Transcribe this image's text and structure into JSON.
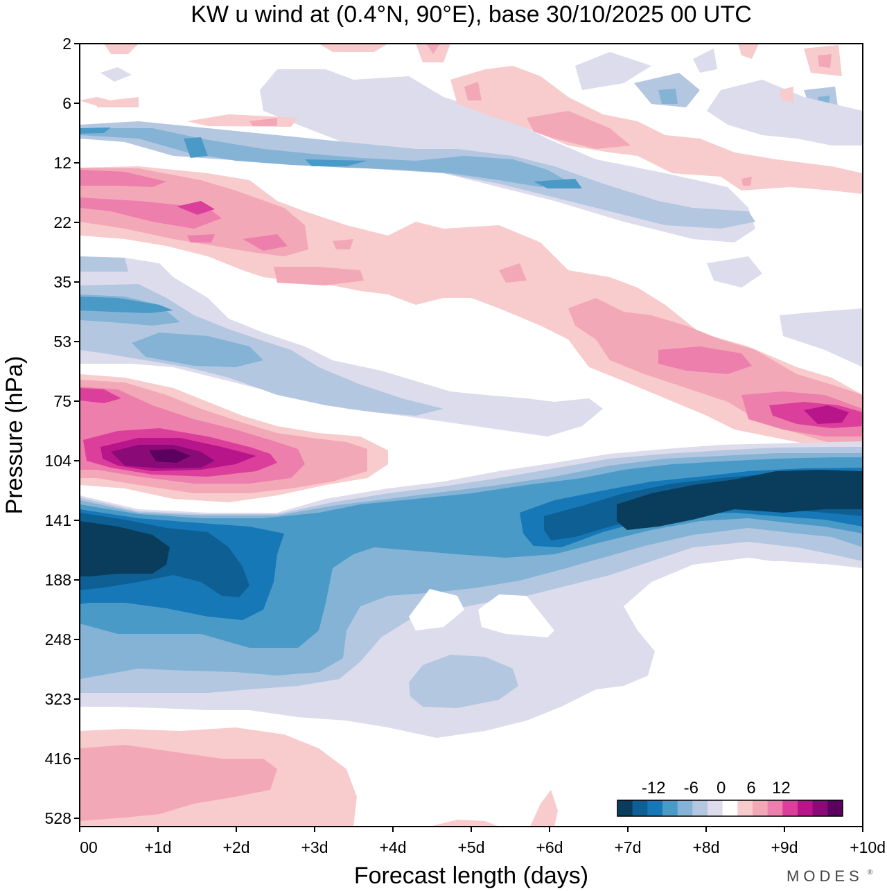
{
  "chart_data": {
    "type": "heatmap",
    "title": "KW u wind at (0.4°N, 90°E),  base 30/10/2025  00 UTC",
    "xlabel": "Forecast length (days)",
    "ylabel": "Pressure (hPa)",
    "x_ticks": [
      "00",
      "+1d",
      "+2d",
      "+3d",
      "+4d",
      "+5d",
      "+6d",
      "+7d",
      "+8d",
      "+9d",
      "+10d"
    ],
    "xlim_days": [
      0,
      10
    ],
    "y_ticks": [
      "2",
      "6",
      "12",
      "22",
      "35",
      "53",
      "75",
      "104",
      "141",
      "188",
      "248",
      "323",
      "416",
      "528"
    ],
    "y_order": "decreasing pressure upward (log-pressure axis)",
    "colorbar": {
      "ticks": [
        "-12",
        "-6",
        "0",
        "6",
        "12"
      ],
      "levels": [
        -18,
        -15,
        -12,
        -9,
        -6,
        -3,
        0,
        3,
        6,
        9,
        12,
        15
      ],
      "colors": [
        "#0a3d5c",
        "#0d5f94",
        "#1778b8",
        "#4a9ac8",
        "#84b3d6",
        "#b4c7e0",
        "#dcdcec",
        "#ffffff",
        "#f8cccc",
        "#f3a8b8",
        "#ed7fac",
        "#dc3f9b",
        "#b8158a",
        "#8a0b78",
        "#5c0060"
      ]
    },
    "features": [
      {
        "name": "upper-troposphere easterly core",
        "pressure_hPa": "141-188",
        "days": "0 to 2.5",
        "min_u": -18
      },
      {
        "name": "lower-stratosphere easterly core",
        "pressure_hPa": "120-141",
        "days": "6.5 to 10",
        "min_u": -18
      },
      {
        "name": "westerly jet",
        "pressure_hPa": "~104",
        "days": "0 to 3.5",
        "max_u": 18
      },
      {
        "name": "westerly band",
        "pressure_hPa": "~80",
        "days": "8.5 to 10",
        "max_u": 15
      },
      {
        "name": "lower-troposphere westerlies",
        "pressure_hPa": "416-528",
        "days": "0 to 3.5",
        "max_u": 6
      }
    ]
  },
  "brand": "MODES",
  "brand_mark": "®"
}
